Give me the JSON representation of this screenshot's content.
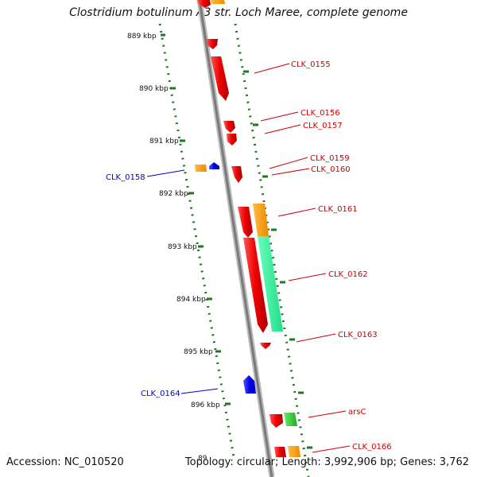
{
  "title": "Clostridium botulinum A3 str. Loch Maree, complete genome",
  "footer": {
    "accession": "Accession: NC_010520",
    "topology": "Topology: circular; Length: 3,992,906 bp; Genes: 3,762"
  },
  "scale_labels": [
    "889 kbp",
    "890 kbp",
    "891 kbp",
    "892 kbp",
    "893 kbp",
    "894 kbp",
    "895 kbp",
    "896 kbp",
    "89"
  ],
  "gene_labels": [
    {
      "text": "CLK_0155",
      "color": "#cc0000"
    },
    {
      "text": "CLK_0156",
      "color": "#cc0000"
    },
    {
      "text": "CLK_0157",
      "color": "#cc0000"
    },
    {
      "text": "CLK_0159",
      "color": "#cc0000"
    },
    {
      "text": "CLK_0160",
      "color": "#cc0000"
    },
    {
      "text": "CLK_0158",
      "color": "#0000cc"
    },
    {
      "text": "CLK_0161",
      "color": "#cc0000"
    },
    {
      "text": "CLK_0162",
      "color": "#cc0000"
    },
    {
      "text": "CLK_0163",
      "color": "#cc0000"
    },
    {
      "text": "CLK_0164",
      "color": "#0000cc"
    },
    {
      "text": "arsC",
      "color": "#cc0000"
    },
    {
      "text": "CLK_0166",
      "color": "#cc0000"
    }
  ],
  "colors": {
    "forward_cds": "#ee0000",
    "reverse_cds": "#0000ee",
    "cog_orange": "#ff9900",
    "cog_teal": "#33ee99",
    "cog_green": "#33cc33",
    "scale_dots": "#227722",
    "backbone": "#888888"
  }
}
